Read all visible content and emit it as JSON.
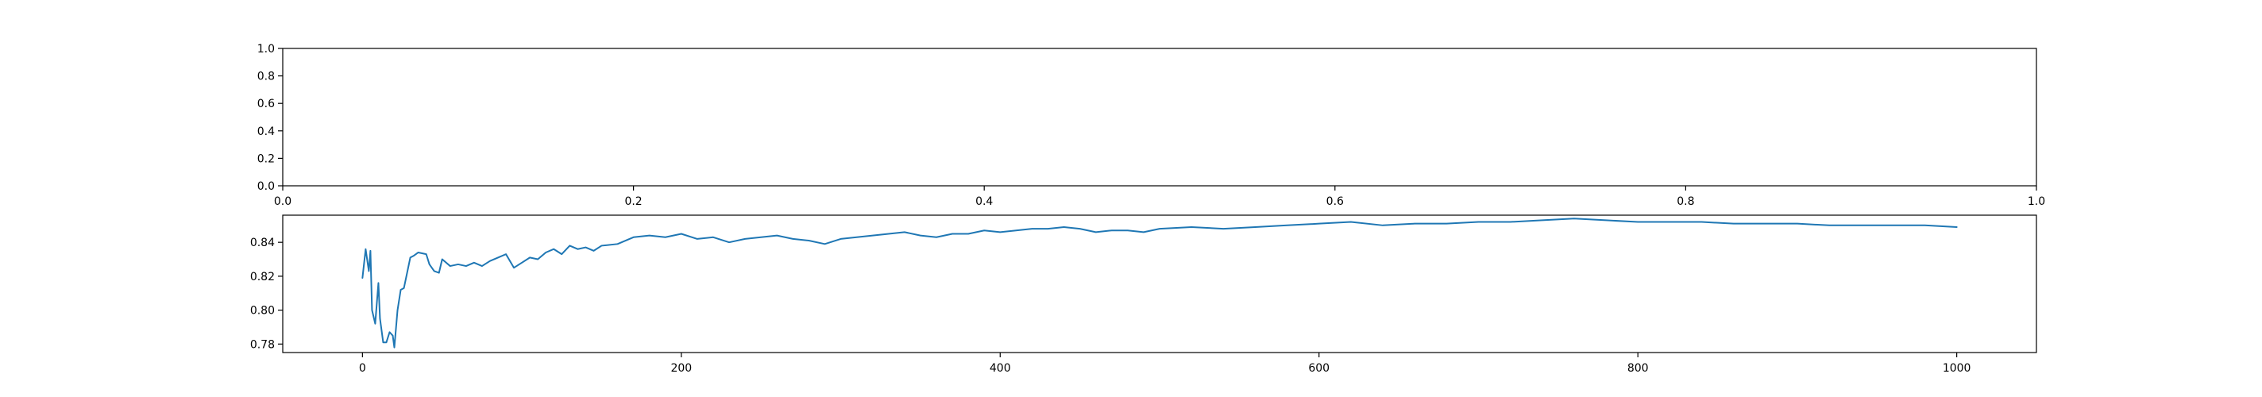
{
  "chart_data": [
    {
      "type": "line",
      "title": "",
      "xlabel": "",
      "ylabel": "",
      "xlim": [
        0,
        1
      ],
      "ylim": [
        0,
        1
      ],
      "xticks": [
        "0.0",
        "0.2",
        "0.4",
        "0.6",
        "0.8",
        "1.0"
      ],
      "yticks": [
        "0.0",
        "0.2",
        "0.4",
        "0.6",
        "0.8",
        "1.0"
      ],
      "grid": false,
      "series": []
    },
    {
      "type": "line",
      "title": "",
      "xlabel": "",
      "ylabel": "",
      "xlim": [
        -50,
        1050
      ],
      "ylim": [
        0.775,
        0.856
      ],
      "xticks": [
        "0",
        "200",
        "400",
        "600",
        "800",
        "1000"
      ],
      "yticks": [
        "0.78",
        "0.80",
        "0.82",
        "0.84"
      ],
      "grid": false,
      "color": "#1f77b4",
      "series": [
        {
          "x": [
            0,
            2,
            4,
            5,
            6,
            8,
            10,
            11,
            13,
            15,
            17,
            19,
            20,
            22,
            24,
            26,
            28,
            30,
            32,
            35,
            40,
            42,
            45,
            48,
            50,
            55,
            60,
            65,
            70,
            75,
            80,
            85,
            90,
            95,
            100,
            105,
            110,
            115,
            120,
            125,
            130,
            135,
            140,
            145,
            150,
            160,
            170,
            180,
            190,
            200,
            210,
            220,
            230,
            240,
            250,
            260,
            270,
            280,
            290,
            300,
            310,
            320,
            330,
            340,
            350,
            360,
            370,
            380,
            390,
            400,
            410,
            420,
            430,
            440,
            450,
            460,
            470,
            480,
            490,
            500,
            520,
            540,
            560,
            580,
            600,
            620,
            640,
            660,
            680,
            700,
            720,
            740,
            760,
            780,
            800,
            820,
            840,
            860,
            880,
            900,
            920,
            940,
            960,
            980,
            1000
          ],
          "y": [
            0.819,
            0.836,
            0.823,
            0.835,
            0.8,
            0.792,
            0.816,
            0.795,
            0.781,
            0.781,
            0.787,
            0.785,
            0.778,
            0.8,
            0.812,
            0.813,
            0.822,
            0.831,
            0.832,
            0.834,
            0.833,
            0.827,
            0.823,
            0.822,
            0.83,
            0.826,
            0.827,
            0.826,
            0.828,
            0.826,
            0.829,
            0.831,
            0.833,
            0.825,
            0.828,
            0.831,
            0.83,
            0.834,
            0.836,
            0.833,
            0.838,
            0.836,
            0.837,
            0.835,
            0.838,
            0.839,
            0.843,
            0.844,
            0.843,
            0.845,
            0.842,
            0.843,
            0.84,
            0.842,
            0.843,
            0.844,
            0.842,
            0.841,
            0.839,
            0.842,
            0.843,
            0.844,
            0.845,
            0.846,
            0.844,
            0.843,
            0.845,
            0.845,
            0.847,
            0.846,
            0.847,
            0.848,
            0.848,
            0.849,
            0.848,
            0.846,
            0.847,
            0.847,
            0.846,
            0.848,
            0.849,
            0.848,
            0.849,
            0.85,
            0.851,
            0.852,
            0.85,
            0.851,
            0.851,
            0.852,
            0.852,
            0.853,
            0.854,
            0.853,
            0.852,
            0.852,
            0.852,
            0.851,
            0.851,
            0.851,
            0.85,
            0.85,
            0.85,
            0.85,
            0.849
          ]
        }
      ]
    }
  ]
}
